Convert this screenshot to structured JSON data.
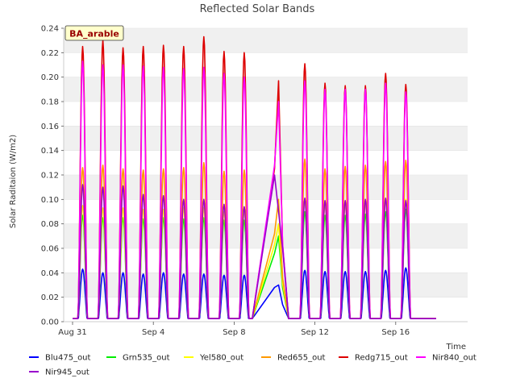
{
  "chart_data": {
    "type": "line",
    "title": "Reflected Solar Bands",
    "badge": "BA_arable",
    "ylabel": "Solar Raditaion (W/m2)",
    "xlabel": "Time",
    "ylim": [
      0,
      0.24
    ],
    "yticks": [
      0.0,
      0.02,
      0.04,
      0.06,
      0.08,
      0.1,
      0.12,
      0.14,
      0.16,
      0.18,
      0.2,
      0.22,
      0.24
    ],
    "ytick_labels": [
      "0.00",
      "0.02",
      "0.04",
      "0.06",
      "0.08",
      "0.10",
      "0.12",
      "0.14",
      "0.16",
      "0.18",
      "0.20",
      "0.22",
      "0.24"
    ],
    "xlim_days": [
      0,
      18
    ],
    "xticks": [
      {
        "day": 0,
        "label": "Aug 31"
      },
      {
        "day": 4,
        "label": "Sep 4"
      },
      {
        "day": 8,
        "label": "Sep 8"
      },
      {
        "day": 12,
        "label": "Sep 12"
      },
      {
        "day": 16,
        "label": "Sep 16"
      }
    ],
    "grid": "horizontal bands",
    "legend": "bottom",
    "days_before_gap": [
      0,
      1,
      2,
      3,
      4,
      5,
      6,
      7,
      8
    ],
    "days_after_gap": [
      11,
      12,
      13,
      14,
      15,
      16
    ],
    "gap": {
      "start_day": 9,
      "end_day": 10
    },
    "series": [
      {
        "name": "Blu475_out",
        "color": "#0000ff",
        "daily_peaks": [
          0.043,
          0.04,
          0.04,
          0.039,
          0.04,
          0.039,
          0.039,
          0.038,
          0.038,
          0.03,
          0.042,
          0.041,
          0.041,
          0.041,
          0.042,
          0.044
        ],
        "gap_level": 0.028
      },
      {
        "name": "Grn535_out",
        "color": "#00ee00",
        "daily_peaks": [
          0.087,
          0.085,
          0.085,
          0.084,
          0.085,
          0.084,
          0.085,
          0.083,
          0.083,
          0.07,
          0.09,
          0.087,
          0.087,
          0.088,
          0.09,
          0.092
        ],
        "gap_level": 0.056
      },
      {
        "name": "Yel580_out",
        "color": "#ffff00",
        "daily_peaks": [
          0.095,
          0.093,
          0.093,
          0.092,
          0.092,
          0.093,
          0.093,
          0.09,
          0.091,
          0.08,
          0.1,
          0.096,
          0.096,
          0.097,
          0.1,
          0.1
        ],
        "gap_level": 0.063
      },
      {
        "name": "Red655_out",
        "color": "#ff9900",
        "daily_peaks": [
          0.126,
          0.128,
          0.125,
          0.124,
          0.125,
          0.126,
          0.13,
          0.123,
          0.124,
          0.1,
          0.133,
          0.125,
          0.127,
          0.128,
          0.131,
          0.132
        ],
        "gap_level": 0.072
      },
      {
        "name": "Redg715_out",
        "color": "#dd0000",
        "daily_peaks": [
          0.225,
          0.23,
          0.224,
          0.225,
          0.226,
          0.225,
          0.233,
          0.221,
          0.22,
          0.197,
          0.211,
          0.195,
          0.193,
          0.193,
          0.203,
          0.194
        ],
        "gap_level": 0.125
      },
      {
        "name": "Nir840_out",
        "color": "#ff00ff",
        "daily_peaks": [
          0.213,
          0.21,
          0.21,
          0.209,
          0.208,
          0.207,
          0.208,
          0.203,
          0.2,
          0.18,
          0.197,
          0.19,
          0.19,
          0.19,
          0.195,
          0.188
        ],
        "gap_level": 0.128
      },
      {
        "name": "Nir945_out",
        "color": "#9900cc",
        "daily_peaks": [
          0.112,
          0.11,
          0.111,
          0.104,
          0.103,
          0.1,
          0.1,
          0.096,
          0.094,
          0.09,
          0.101,
          0.099,
          0.099,
          0.1,
          0.101,
          0.099
        ],
        "gap_level": 0.12
      }
    ]
  }
}
